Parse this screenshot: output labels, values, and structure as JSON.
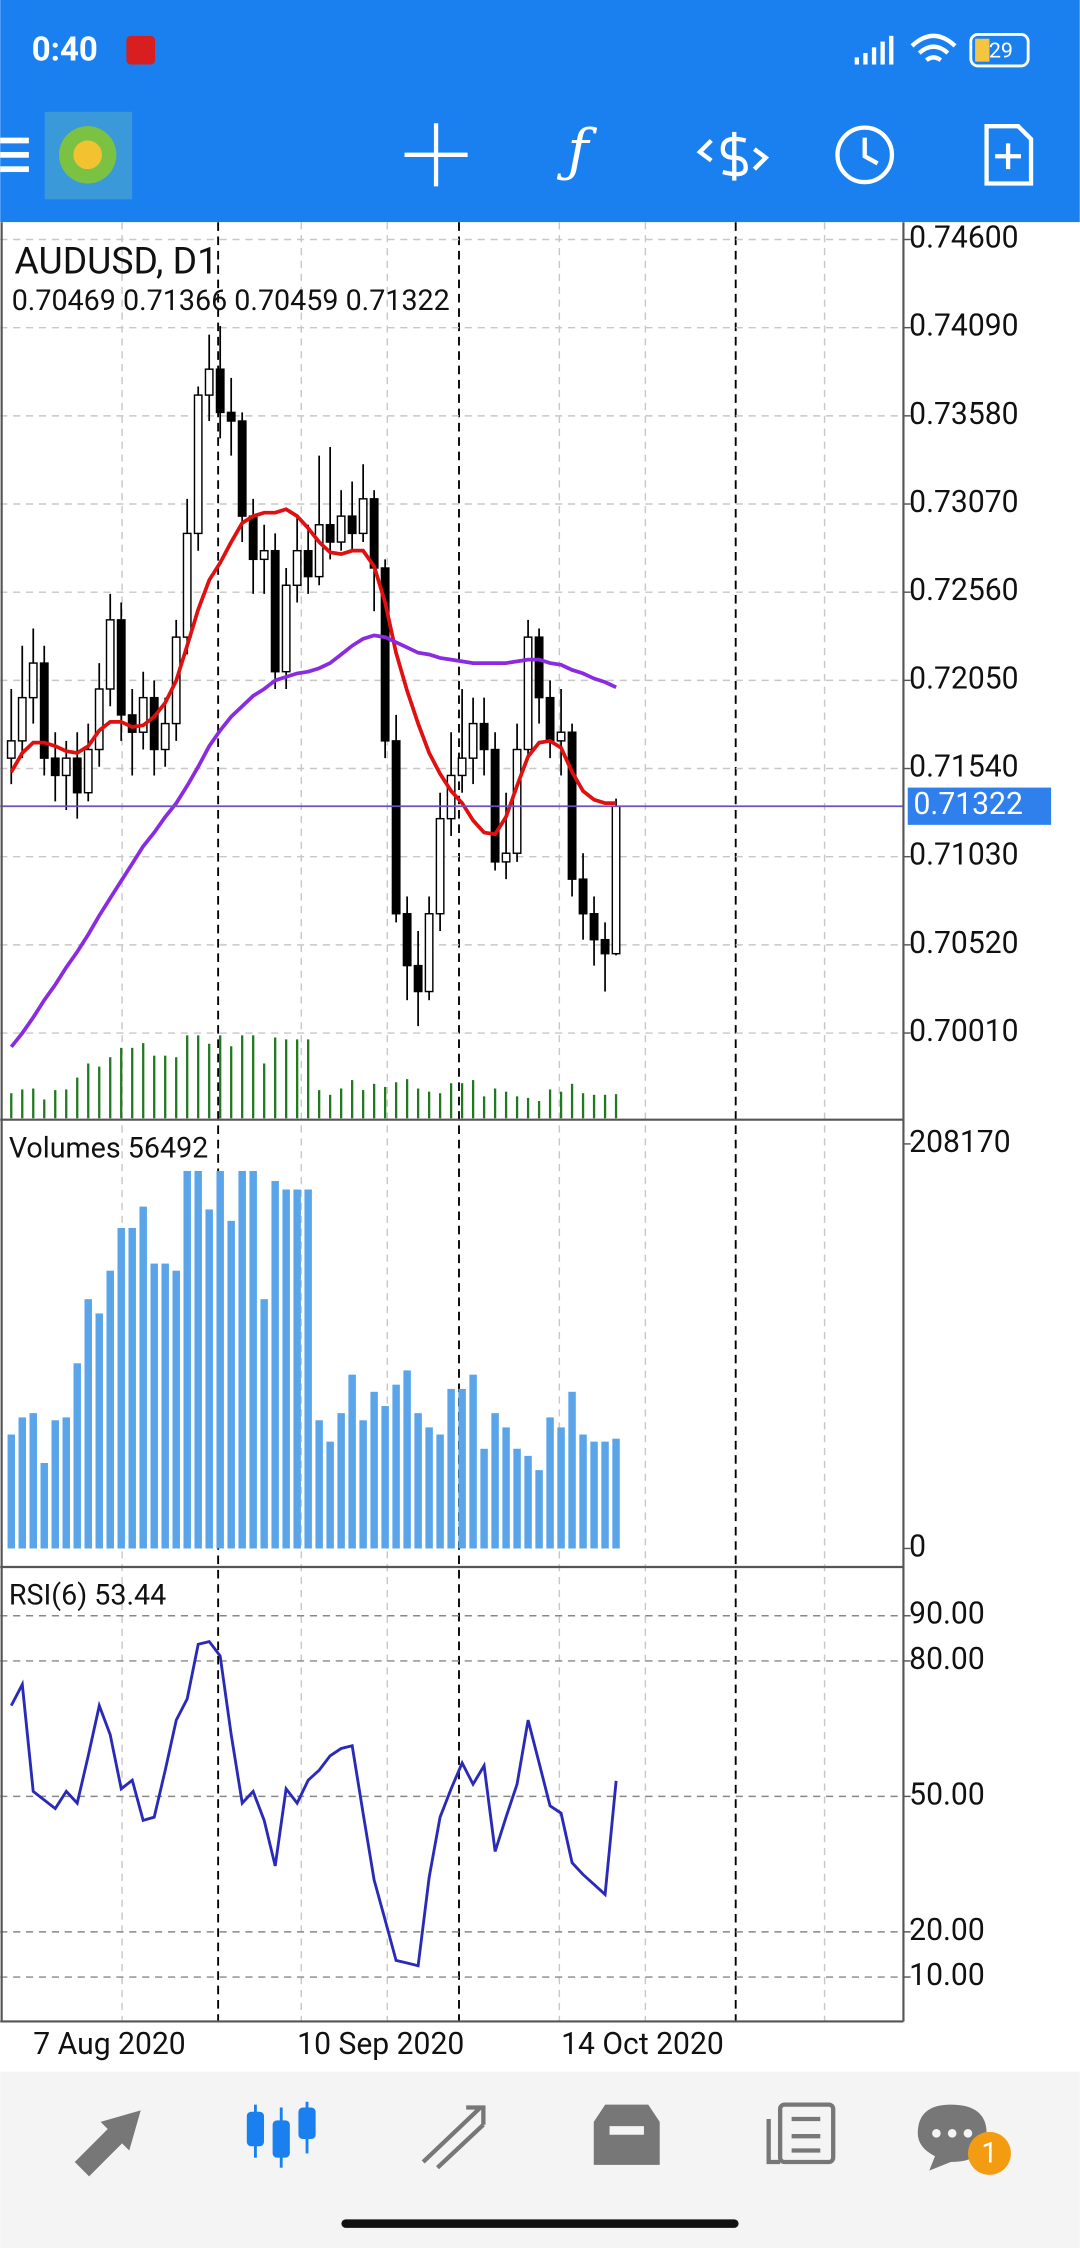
{
  "status_bar": {
    "time": "0:40",
    "battery": "29"
  },
  "nav": {
    "badge": "1"
  },
  "chart_data": [
    {
      "type": "candlestick",
      "title": "AUDUSD, D1",
      "subtitle": "0.70469 0.71366 0.70459 0.71322",
      "categories": [
        null,
        null,
        "7 Aug 2020",
        null,
        null,
        null,
        null,
        null,
        null,
        null,
        null,
        null,
        null,
        null,
        null,
        null,
        null,
        null,
        null,
        null,
        null,
        null,
        null,
        null,
        null,
        null,
        "10 Sep 2020",
        null,
        null,
        null,
        null,
        null,
        null,
        null,
        null,
        null,
        null,
        null,
        null,
        null,
        null,
        null,
        null,
        null,
        null,
        null,
        null,
        null,
        null,
        null,
        "14 Oct 2020",
        null,
        null,
        null,
        null,
        null
      ],
      "open": [
        0.716,
        0.717,
        0.7195,
        0.7215,
        0.716,
        0.715,
        0.716,
        0.714,
        0.7165,
        0.72,
        0.724,
        0.7185,
        0.7175,
        0.7195,
        0.7165,
        0.718,
        0.723,
        0.729,
        0.737,
        0.7385,
        0.736,
        0.7355,
        0.73,
        0.7275,
        0.728,
        0.721,
        0.726,
        0.728,
        0.7265,
        0.7295,
        0.7285,
        0.73,
        0.729,
        0.731,
        0.727,
        0.717,
        0.707,
        0.704,
        0.7025,
        0.707,
        0.7125,
        0.715,
        0.716,
        0.718,
        0.7165,
        0.71,
        0.7105,
        0.7165,
        0.723,
        0.7195,
        0.717,
        0.7175,
        0.709,
        0.707,
        0.7055,
        0.70469
      ],
      "high": [
        0.72,
        0.7225,
        0.7235,
        0.7225,
        0.7175,
        0.717,
        0.7175,
        0.718,
        0.7215,
        0.7255,
        0.725,
        0.72,
        0.721,
        0.7205,
        0.7195,
        0.724,
        0.731,
        0.7375,
        0.7405,
        0.741,
        0.738,
        0.736,
        0.731,
        0.7295,
        0.729,
        0.727,
        0.73,
        0.7295,
        0.7335,
        0.734,
        0.7315,
        0.732,
        0.733,
        0.7315,
        0.7275,
        0.7185,
        0.708,
        0.706,
        0.708,
        0.714,
        0.7175,
        0.72,
        0.7195,
        0.7195,
        0.7175,
        0.714,
        0.718,
        0.724,
        0.7235,
        0.7205,
        0.72,
        0.718,
        0.7105,
        0.708,
        0.7065,
        0.71366
      ],
      "low": [
        0.7145,
        0.716,
        0.718,
        0.715,
        0.7135,
        0.713,
        0.7125,
        0.7135,
        0.7155,
        0.719,
        0.717,
        0.715,
        0.7165,
        0.715,
        0.7155,
        0.717,
        0.722,
        0.728,
        0.7355,
        0.7345,
        0.7335,
        0.7285,
        0.7255,
        0.7255,
        0.72,
        0.72,
        0.725,
        0.7255,
        0.726,
        0.7275,
        0.728,
        0.728,
        0.7285,
        0.7245,
        0.716,
        0.7065,
        0.702,
        0.7005,
        0.702,
        0.706,
        0.7115,
        0.714,
        0.7145,
        0.715,
        0.7095,
        0.709,
        0.71,
        0.716,
        0.718,
        0.716,
        0.715,
        0.708,
        0.7055,
        0.704,
        0.7025,
        0.70459
      ],
      "close": [
        0.717,
        0.7195,
        0.7215,
        0.716,
        0.715,
        0.716,
        0.714,
        0.7165,
        0.72,
        0.724,
        0.7185,
        0.7175,
        0.7195,
        0.7165,
        0.718,
        0.723,
        0.729,
        0.737,
        0.7385,
        0.736,
        0.7355,
        0.73,
        0.7275,
        0.728,
        0.721,
        0.726,
        0.728,
        0.7265,
        0.7295,
        0.7285,
        0.73,
        0.729,
        0.731,
        0.727,
        0.717,
        0.707,
        0.704,
        0.7025,
        0.707,
        0.7125,
        0.715,
        0.716,
        0.718,
        0.7165,
        0.71,
        0.7105,
        0.7165,
        0.723,
        0.7195,
        0.717,
        0.7175,
        0.709,
        0.707,
        0.7055,
        0.70469,
        0.71322
      ],
      "up_color": "#ffffff",
      "down_color": "#000000",
      "moving_averages": [
        {
          "color": "#e01010",
          "values": [
            0.7152,
            0.7163,
            0.7169,
            0.7169,
            0.7167,
            0.7164,
            0.7163,
            0.7167,
            0.7176,
            0.7181,
            0.7181,
            0.7178,
            0.7179,
            0.7184,
            0.7192,
            0.7205,
            0.7225,
            0.7246,
            0.7263,
            0.7273,
            0.7285,
            0.7296,
            0.73,
            0.7302,
            0.7302,
            0.7304,
            0.73,
            0.7293,
            0.7285,
            0.7279,
            0.7278,
            0.728,
            0.728,
            0.7271,
            0.725,
            0.7221,
            0.7199,
            0.718,
            0.7163,
            0.7151,
            0.7141,
            0.7134,
            0.7124,
            0.7117,
            0.7116,
            0.7126,
            0.7144,
            0.7161,
            0.7169,
            0.717,
            0.7166,
            0.7152,
            0.7141,
            0.7136,
            0.7134,
            0.7134
          ]
        },
        {
          "color": "#8a2be2",
          "values": [
            0.6993,
            0.7001,
            0.701,
            0.702,
            0.7029,
            0.7039,
            0.7048,
            0.7058,
            0.7069,
            0.7079,
            0.7089,
            0.7099,
            0.7109,
            0.7117,
            0.7126,
            0.7134,
            0.7144,
            0.7155,
            0.7167,
            0.7176,
            0.7184,
            0.719,
            0.7196,
            0.72,
            0.7205,
            0.7207,
            0.7209,
            0.721,
            0.7212,
            0.7215,
            0.722,
            0.7225,
            0.7229,
            0.7231,
            0.723,
            0.7227,
            0.7224,
            0.7221,
            0.722,
            0.7218,
            0.7217,
            0.7216,
            0.7215,
            0.7215,
            0.7215,
            0.7215,
            0.7216,
            0.7217,
            0.7217,
            0.7215,
            0.7214,
            0.7211,
            0.7209,
            0.7206,
            0.7204,
            0.7201
          ]
        }
      ],
      "last_price": {
        "value": 0.71322,
        "label": "0.71322"
      },
      "last_price_color": "#6a4fc8",
      "last_price_box": "#2f80ed",
      "ylim": [
        0.69517,
        0.747
      ],
      "yticks": [
        {
          "value": 0.746,
          "label": "0.74600"
        },
        {
          "value": 0.7409,
          "label": "0.74090"
        },
        {
          "value": 0.7358,
          "label": "0.73580"
        },
        {
          "value": 0.7307,
          "label": "0.73070"
        },
        {
          "value": 0.7256,
          "label": "0.72560"
        },
        {
          "value": 0.7205,
          "label": "0.72050"
        },
        {
          "value": 0.7154,
          "label": "0.71540"
        },
        {
          "value": 0.7103,
          "label": "0.71030"
        },
        {
          "value": 0.7052,
          "label": "0.70520"
        },
        {
          "value": 0.7001,
          "label": "0.70010"
        }
      ],
      "grid": true
    },
    {
      "type": "bar",
      "title": "Volumes 56492",
      "color": "#5aa5ea",
      "overlay_color": "#1f7a1f",
      "values": [
        58640,
        67440,
        69640,
        43980,
        65970,
        67440,
        95290,
        128280,
        120950,
        142940,
        164930,
        164930,
        175920,
        146600,
        146600,
        142940,
        194250,
        194250,
        174450,
        194250,
        168590,
        194250,
        194250,
        128280,
        189110,
        184720,
        184720,
        184720,
        65970,
        54980,
        69640,
        89430,
        65970,
        80630,
        73300,
        84300,
        91630,
        69640,
        62310,
        58640,
        82100,
        82100,
        89430,
        51310,
        69640,
        62310,
        51310,
        47650,
        40320,
        67440,
        62310,
        80630,
        58640,
        54980,
        54980,
        56492
      ],
      "ylim": [
        -8796,
        219898
      ],
      "yticks": [
        0,
        208170
      ],
      "grid": false
    },
    {
      "type": "line",
      "title": "RSI(6) 53.44",
      "color": "#2a2ab8",
      "values": [
        70.1,
        74.8,
        51.1,
        49.2,
        47.3,
        51.1,
        48.5,
        59.0,
        70.1,
        63.7,
        51.7,
        53.6,
        44.7,
        45.4,
        55.8,
        66.9,
        71.6,
        83.7,
        84.3,
        81.1,
        63.7,
        48.5,
        51.1,
        44.7,
        34.6,
        51.7,
        48.5,
        53.6,
        55.8,
        59.0,
        60.6,
        61.2,
        46.3,
        31.5,
        22.6,
        13.7,
        13.1,
        12.5,
        32.1,
        45.4,
        51.7,
        57.4,
        52.7,
        56.8,
        37.8,
        45.4,
        52.7,
        66.9,
        57.4,
        47.9,
        46.3,
        35.3,
        32.7,
        30.5,
        28.3,
        53.44
      ],
      "ylim": [
        0.16,
        100.48
      ],
      "yticks": [
        {
          "value": 90,
          "label": "90.00"
        },
        {
          "value": 80,
          "label": "80.00"
        },
        {
          "value": 50,
          "label": "50.00"
        },
        {
          "value": 20,
          "label": "20.00"
        },
        {
          "value": 10,
          "label": "10.00"
        }
      ],
      "grid": true
    }
  ]
}
